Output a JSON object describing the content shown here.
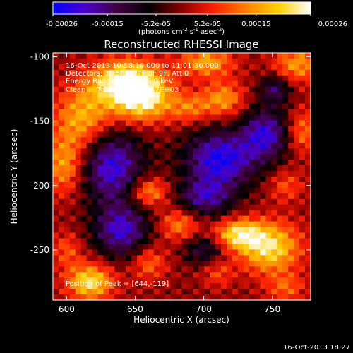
{
  "chart_data": {
    "type": "heatmap",
    "title": "Reconstructed RHESSI Image",
    "xlabel": "Heliocentric X (arcsec)",
    "ylabel": "Heliocentric Y (arcsec)",
    "xlim": [
      590,
      778
    ],
    "ylim": [
      -289,
      -97
    ],
    "x_ticks": [
      600,
      650,
      700,
      750
    ],
    "y_ticks": [
      -100,
      -150,
      -200,
      -250
    ],
    "colorbar": {
      "range": [
        -0.00026,
        0.00026
      ],
      "ticks": [
        "-0.00026",
        "-0.00015",
        "-5.2e-05",
        "5.2e-05",
        "0.00015",
        "0.00026"
      ],
      "tick_values": [
        -0.00026,
        -0.00015,
        -5.2e-05,
        5.2e-05,
        0.00015,
        0.00026
      ],
      "label_main": "(photons cm",
      "label_sup1": "-2",
      "label_mid": " s",
      "label_sup2": "-1",
      "label_end": " asec",
      "label_sup3": "-2",
      "label_close": ")",
      "colors": [
        "#0000ff",
        "#4a00c8",
        "#400040",
        "#000000",
        "#8a0000",
        "#ff2000",
        "#ff8000",
        "#ffd000",
        "#ffffff"
      ]
    },
    "annotations": [
      "16-Oct-2013 10:58:16.000 to 11:01:36.000",
      "Detectors: 3F 5F 6F 7F 8F 9F, Att 0",
      "Energy Range: 12.0 - 25.0 keV",
      "Clean     Total counts: 7.17E+03"
    ],
    "peak_label": "Position of Peak = [644,-119]",
    "peak": [
      644,
      -119
    ],
    "grid": false,
    "sources": [
      {
        "x": 644,
        "y": -119,
        "value": 0.00026,
        "sx": 18,
        "sy": 12
      },
      {
        "x": 655,
        "y": -135,
        "value": 0.0002,
        "sx": 16,
        "sy": 12
      },
      {
        "x": 612,
        "y": -148,
        "value": 0.00017,
        "sx": 15,
        "sy": 18
      },
      {
        "x": 598,
        "y": -185,
        "value": 0.00015,
        "sx": 10,
        "sy": 16
      },
      {
        "x": 702,
        "y": -104,
        "value": 0.00016,
        "sx": 14,
        "sy": 8
      },
      {
        "x": 714,
        "y": -133,
        "value": 0.00015,
        "sx": 11,
        "sy": 10
      },
      {
        "x": 690,
        "y": -140,
        "value": 0.00011,
        "sx": 10,
        "sy": 8
      },
      {
        "x": 768,
        "y": -106,
        "value": 0.00015,
        "sx": 12,
        "sy": 10
      },
      {
        "x": 772,
        "y": -158,
        "value": 0.00012,
        "sx": 8,
        "sy": 12
      },
      {
        "x": 760,
        "y": -200,
        "value": 9e-05,
        "sx": 9,
        "sy": 9
      },
      {
        "x": 660,
        "y": -205,
        "value": 0.00016,
        "sx": 10,
        "sy": 8
      },
      {
        "x": 682,
        "y": -230,
        "value": 0.00013,
        "sx": 10,
        "sy": 9
      },
      {
        "x": 725,
        "y": -238,
        "value": 0.0002,
        "sx": 12,
        "sy": 8
      },
      {
        "x": 748,
        "y": -248,
        "value": 0.00022,
        "sx": 16,
        "sy": 14
      },
      {
        "x": 660,
        "y": -260,
        "value": 0.00011,
        "sx": 9,
        "sy": 10
      },
      {
        "x": 710,
        "y": -268,
        "value": 8e-05,
        "sx": 8,
        "sy": 8
      },
      {
        "x": 617,
        "y": -275,
        "value": 0.00022,
        "sx": 12,
        "sy": 10
      },
      {
        "x": 600,
        "y": -250,
        "value": 9e-05,
        "sx": 8,
        "sy": 10
      },
      {
        "x": 760,
        "y": -280,
        "value": 0.0001,
        "sx": 10,
        "sy": 8
      },
      {
        "x": 633,
        "y": -185,
        "value": -0.00022,
        "sx": 16,
        "sy": 20
      },
      {
        "x": 712,
        "y": -180,
        "value": -0.00024,
        "sx": 18,
        "sy": 16
      },
      {
        "x": 745,
        "y": -160,
        "value": -0.0002,
        "sx": 12,
        "sy": 14
      },
      {
        "x": 640,
        "y": -235,
        "value": -0.0002,
        "sx": 14,
        "sy": 14
      },
      {
        "x": 700,
        "y": -210,
        "value": -0.00016,
        "sx": 14,
        "sy": 10
      },
      {
        "x": 752,
        "y": -125,
        "value": -0.00014,
        "sx": 8,
        "sy": 8
      },
      {
        "x": 700,
        "y": -250,
        "value": -0.00012,
        "sx": 10,
        "sy": 8
      }
    ]
  },
  "footer": {
    "timestamp": "16-Oct-2013 18:27"
  }
}
